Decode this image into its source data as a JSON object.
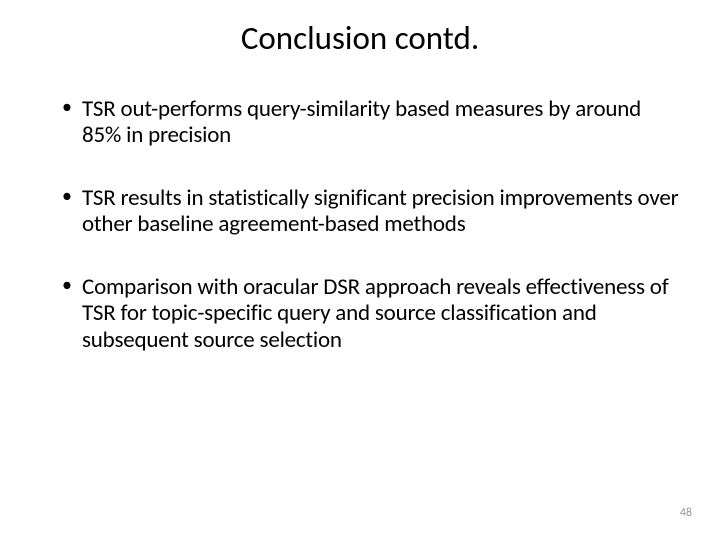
{
  "slide": {
    "title": "Conclusion contd.",
    "bullets": [
      "TSR out-performs query-similarity based measures by around 85% in precision",
      "TSR results in statistically significant precision improvements over other baseline agreement-based methods",
      "Comparison with oracular DSR approach reveals effectiveness of TSR for topic-specific query and source classification and subsequent source selection"
    ],
    "pageNumber": "48"
  },
  "style": {
    "backgroundColor": "#ffffff",
    "textColor": "#000000",
    "pageNumberColor": "#999999",
    "titleFontSize": 33,
    "bodyFontSize": 23,
    "pageNumberFontSize": 12,
    "fontFamily": "Calibri, Arial, sans-serif"
  }
}
